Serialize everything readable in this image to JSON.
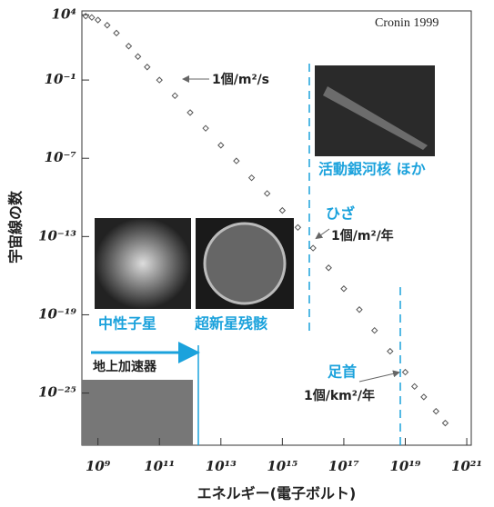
{
  "chart_data": {
    "type": "scatter",
    "xlabel": "エネルギー(電子ボルト)",
    "ylabel": "宇宙線の数",
    "log_x": true,
    "log_y": true,
    "color": "#555555",
    "xlim": [
      300000000.0,
      1.4e+21
    ],
    "ylim": [
      1e-29,
      20000.0
    ],
    "xticks": [
      {
        "value": 1000000000.0,
        "label": "10⁹"
      },
      {
        "value": 100000000000.0,
        "label": "10¹¹"
      },
      {
        "value": 10000000000000.0,
        "label": "10¹³"
      },
      {
        "value": 1000000000000000.0,
        "label": "10¹⁵"
      },
      {
        "value": 1e+17,
        "label": "10¹⁷"
      },
      {
        "value": 1e+19,
        "label": "10¹⁹"
      },
      {
        "value": 1e+21,
        "label": "10²¹"
      }
    ],
    "yticks": [
      {
        "value": 10000.0,
        "label": "10⁴"
      },
      {
        "value": 0.1,
        "label": "10⁻¹"
      },
      {
        "value": 1e-07,
        "label": "10⁻⁷"
      },
      {
        "value": 1e-13,
        "label": "10⁻¹³"
      },
      {
        "value": 1e-19,
        "label": "10⁻¹⁹"
      },
      {
        "value": 1e-25,
        "label": "10⁻²⁵"
      }
    ],
    "x": [
      400000000.0,
      630000000.0,
      1000000000.0,
      2000000000.0,
      4000000000.0,
      10000000000.0,
      20000000000.0,
      40000000000.0,
      100000000000.0,
      320000000000.0,
      1000000000000.0,
      3200000000000.0,
      10000000000000.0,
      32000000000000.0,
      100000000000000.0,
      320000000000000.0,
      1000000000000000.0,
      3200000000000000.0,
      1e+16,
      3.2e+16,
      1e+17,
      3.2e+17,
      1e+18,
      3.2e+18,
      1e+19,
      2e+19,
      4e+19,
      1e+20,
      2e+20
    ],
    "values": [
      8000.0,
      6300.0,
      4000.0,
      1600.0,
      400.0,
      40,
      6.3,
      1,
      0.1,
      0.0063,
      0.00032,
      2e-05,
      1e-06,
      6.3e-08,
      3.2e-09,
      2e-10,
      1e-11,
      5e-13,
      1.3e-14,
      4e-16,
      1e-17,
      2.5e-19,
      6.3e-21,
      1.6e-22,
      4e-24,
      3.2e-25,
      5e-26,
      4e-27,
      5e-28
    ],
    "annotations": {
      "source": "Cronin  1999",
      "flux1": "1個/m²/s",
      "knee": "ひざ",
      "flux2": "1個/m²/年",
      "ankle": "足首",
      "flux3": "1個/km²/年",
      "agn": "活動銀河核 ほか",
      "neutron_star": "中性子星",
      "snr": "超新星残骸",
      "accelerator": "地上加速器"
    }
  }
}
